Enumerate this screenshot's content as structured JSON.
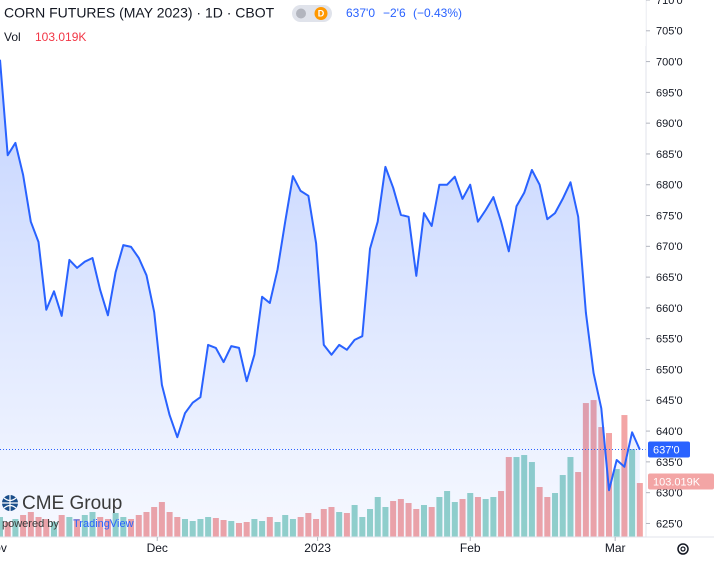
{
  "chart_data": {
    "type": "line",
    "title": "CORN FUTURES (MAY 2023) · 1D · CBOT",
    "interval_badge": "D",
    "last_price": "637'0",
    "change": "−2'6",
    "change_pct": "(−0.43%)",
    "volume_label": "Vol",
    "color": "#2962ff",
    "series": [
      {
        "color": "#2962ff",
        "values": [
          700.3,
          684.8,
          686.8,
          681.6,
          674.0,
          670.7,
          659.7,
          662.7,
          658.7,
          667.8,
          666.5,
          667.5,
          668.1,
          662.9,
          658.8,
          665.8,
          670.2,
          669.9,
          668.1,
          665.3,
          659.3,
          647.5,
          642.6,
          639.0,
          642.9,
          644.6,
          645.5,
          654.0,
          653.5,
          651.2,
          653.8,
          653.5,
          648.1,
          652.4,
          661.8,
          660.8,
          666.2,
          674.0,
          681.4,
          679.0,
          678.2,
          670.5,
          654.0,
          652.4,
          654.0,
          653.2,
          654.8,
          655.4,
          669.6,
          674.0,
          682.9,
          679.5,
          675.1,
          674.8,
          665.2,
          675.4,
          673.3,
          680.0,
          680.0,
          681.3,
          677.7,
          680.0,
          674.0,
          675.9,
          678.0,
          674.0,
          669.2,
          676.5,
          678.7,
          682.4,
          680.0,
          674.4,
          675.4,
          677.7,
          680.4,
          674.8,
          659.2,
          649.4,
          643.7,
          630.4,
          635.3,
          634.2,
          639.8,
          637.0
        ]
      }
    ],
    "volume": {
      "values": [
        38160,
        28620,
        34344,
        41976,
        47700,
        38160,
        34344,
        28620,
        41976,
        38160,
        34344,
        41976,
        47700,
        38160,
        34344,
        45792,
        38160,
        34344,
        41976,
        47700,
        57240,
        66780,
        47700,
        38160,
        34344,
        30528,
        34344,
        38160,
        36252,
        32436,
        30528,
        26712,
        28620,
        34344,
        30528,
        38160,
        28620,
        41976,
        34344,
        38160,
        45792,
        34344,
        53424,
        57240,
        47700,
        45792,
        61056,
        38160,
        53424,
        76320,
        57240,
        68688,
        72504,
        64872,
        53424,
        61056,
        57240,
        76320,
        87768,
        66780,
        72504,
        83952,
        76320,
        72504,
        76320,
        87768,
        152640,
        152640,
        156456,
        143100,
        95400,
        76320,
        83952,
        118296,
        152640,
        124020,
        255672,
        261396,
        209880,
        198432,
        129744,
        232776,
        167904,
        103019
      ],
      "last_value_label": "103.019K",
      "up_color": "#94d3c9",
      "down_color": "#f3a5a5",
      "ylim": [
        0,
        1025000
      ]
    },
    "xlim": [
      0,
      83.8
    ],
    "xticks": [
      {
        "value": -0.5,
        "label": "Nov"
      },
      {
        "value": 20.4,
        "label": "Dec"
      },
      {
        "value": 41.2,
        "label": "2023"
      },
      {
        "value": 61,
        "label": "Feb"
      },
      {
        "value": 79.8,
        "label": "Mar"
      }
    ],
    "ylim": [
      622.8,
      710
    ],
    "yticks": [
      {
        "value": 710,
        "label": "710'0"
      },
      {
        "value": 705,
        "label": "705'0"
      },
      {
        "value": 700,
        "label": "700'0"
      },
      {
        "value": 695,
        "label": "695'0"
      },
      {
        "value": 690,
        "label": "690'0"
      },
      {
        "value": 685,
        "label": "685'0"
      },
      {
        "value": 680,
        "label": "680'0"
      },
      {
        "value": 675,
        "label": "675'0"
      },
      {
        "value": 670,
        "label": "670'0"
      },
      {
        "value": 665,
        "label": "665'0"
      },
      {
        "value": 660,
        "label": "660'0"
      },
      {
        "value": 655,
        "label": "655'0"
      },
      {
        "value": 650,
        "label": "650'0"
      },
      {
        "value": 645,
        "label": "645'0"
      },
      {
        "value": 640,
        "label": "640'0"
      },
      {
        "value": 635,
        "label": "635'0"
      },
      {
        "value": 630,
        "label": "630'0"
      },
      {
        "value": 625,
        "label": "625'0"
      }
    ],
    "logo": "CME Group",
    "powered_by": "powered by",
    "provider": "TradingView"
  }
}
